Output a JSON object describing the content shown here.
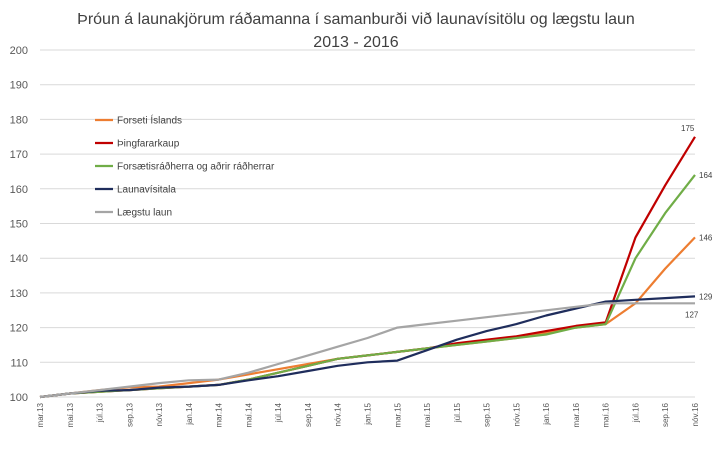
{
  "chart_data": {
    "type": "line",
    "title": "Þróun á launakjörum ráðamanna í samanburði við launavísitölu og lægstu laun",
    "subtitle": "2013 - 2016",
    "xlabel": "",
    "ylabel": "",
    "ylim": [
      100,
      200
    ],
    "yticks": [
      100,
      110,
      120,
      130,
      140,
      150,
      160,
      170,
      180,
      190,
      200
    ],
    "grid": true,
    "legend_position": "left",
    "categories": [
      "mar.13",
      "maí.13",
      "júl.13",
      "sep.13",
      "nóv.13",
      "jan.14",
      "mar.14",
      "maí.14",
      "júl.14",
      "sep.14",
      "nóv.14",
      "jan.15",
      "mar.15",
      "maí.15",
      "júl.15",
      "sep.15",
      "nóv.15",
      "jan.16",
      "mar.16",
      "maí.16",
      "júl.16",
      "sep.16",
      "nóv.16"
    ],
    "series": [
      {
        "name": "Forseti Íslands",
        "color": "#ED7D31",
        "values": [
          100,
          101,
          102,
          102.8,
          103,
          104,
          105,
          106.5,
          108,
          109.5,
          111,
          112,
          113,
          114,
          115,
          116,
          117,
          118.5,
          120,
          121,
          127,
          137,
          146
        ],
        "end_label": "146"
      },
      {
        "name": "Þingfararkaup",
        "color": "#C00000",
        "values": [
          100,
          101,
          101.5,
          102,
          102.5,
          103,
          103.5,
          105,
          107,
          109,
          111,
          112,
          113,
          114,
          115.5,
          116.5,
          117.5,
          119,
          120.5,
          121.5,
          146,
          161,
          175
        ],
        "end_label": "175"
      },
      {
        "name": "Forsætisráðherra og aðrir ráðherrar",
        "color": "#70AD47",
        "values": [
          100,
          101,
          101.5,
          102,
          102.5,
          103,
          103.5,
          105,
          107,
          109,
          111,
          112,
          113,
          114,
          115,
          116,
          117,
          118,
          120,
          121,
          140,
          153,
          164
        ],
        "end_label": "164"
      },
      {
        "name": "Launavísitala",
        "color": "#1F2D5C",
        "values": [
          100,
          101,
          101.8,
          102,
          102.7,
          103,
          103.5,
          104.8,
          106,
          107.5,
          109,
          110,
          110.5,
          113.5,
          116.5,
          119,
          121,
          123.5,
          125.5,
          127.5,
          128,
          128.5,
          129
        ],
        "end_label": "129"
      },
      {
        "name": "Lægstu laun",
        "color": "#A5A5A5",
        "values": [
          100,
          101,
          102,
          103,
          104,
          104.8,
          105,
          107,
          109.5,
          112,
          114.5,
          117,
          120,
          121,
          122,
          123,
          124,
          125,
          126,
          127,
          127,
          127,
          127
        ],
        "end_label": "127"
      }
    ]
  }
}
